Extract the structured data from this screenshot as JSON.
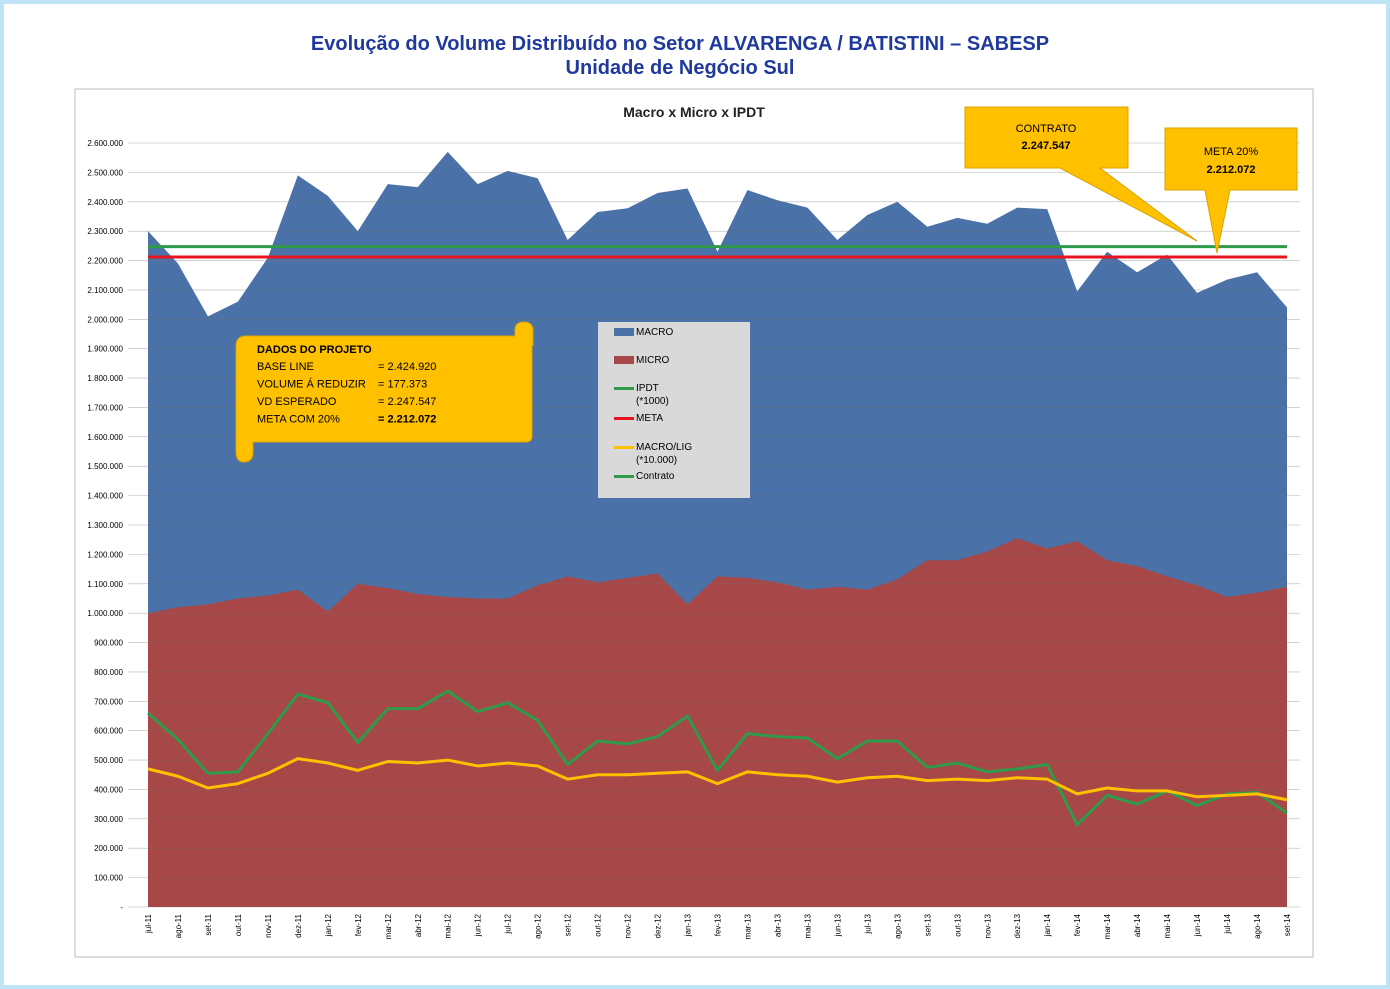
{
  "page_title": [
    "Evolução do Volume Distribuído no Setor ALVARENGA / BATISTINI – SABESP",
    "Unidade de Negócio Sul"
  ],
  "chart_data": {
    "type": "area",
    "title": "Macro x Micro x IPDT",
    "categories": [
      "jul-11",
      "ago-11",
      "set-11",
      "out-11",
      "nov-11",
      "dez-11",
      "jan-12",
      "fev-12",
      "mar-12",
      "abr-12",
      "mai-12",
      "jun-12",
      "jul-12",
      "ago-12",
      "set-12",
      "out-12",
      "nov-12",
      "dez-12",
      "jan-13",
      "fev-13",
      "mar-13",
      "abr-13",
      "mai-13",
      "jun-13",
      "jul-13",
      "ago-13",
      "set-13",
      "out-13",
      "nov-13",
      "dez-13",
      "jan-14",
      "fev-14",
      "mar-14",
      "abr-14",
      "mai-14",
      "jun-14",
      "jul-14",
      "ago-14",
      "set-14"
    ],
    "series": [
      {
        "name": "MACRO",
        "kind": "area",
        "color": "#4a72a8",
        "values": [
          2300000,
          2190000,
          2010000,
          2060000,
          2210000,
          2490000,
          2420000,
          2300000,
          2460000,
          2450000,
          2570000,
          2460000,
          2505000,
          2480000,
          2270000,
          2365000,
          2378000,
          2430000,
          2445000,
          2230000,
          2440000,
          2405000,
          2380000,
          2270000,
          2355000,
          2400000,
          2315000,
          2345000,
          2325000,
          2380000,
          2375000,
          2095000,
          2230000,
          2160000,
          2220000,
          2090000,
          2135000,
          2160000,
          2040000
        ]
      },
      {
        "name": "MICRO",
        "kind": "area",
        "color": "#a84747",
        "values": [
          1000000,
          1020000,
          1030000,
          1050000,
          1060000,
          1080000,
          1005000,
          1100000,
          1085000,
          1065000,
          1055000,
          1050000,
          1050000,
          1095000,
          1125000,
          1105000,
          1120000,
          1135000,
          1030000,
          1125000,
          1120000,
          1105000,
          1080000,
          1090000,
          1080000,
          1115000,
          1180000,
          1180000,
          1210000,
          1255000,
          1220000,
          1245000,
          1180000,
          1160000,
          1125000,
          1095000,
          1055000,
          1070000,
          1090000
        ]
      },
      {
        "name": "IPDT\n(*1000)",
        "kind": "line",
        "color": "#2e9a4a",
        "values": [
          660000,
          570000,
          455000,
          460000,
          590000,
          725000,
          695000,
          560000,
          675000,
          675000,
          735000,
          665000,
          695000,
          635000,
          485000,
          565000,
          555000,
          580000,
          650000,
          465000,
          590000,
          580000,
          575000,
          505000,
          565000,
          565000,
          475000,
          490000,
          460000,
          470000,
          485000,
          280000,
          380000,
          350000,
          395000,
          345000,
          385000,
          390000,
          320000
        ]
      },
      {
        "name": "META",
        "kind": "hline",
        "color": "#e8151f",
        "value": 2212072
      },
      {
        "name": "MACRO/LIG\n(*10.000)",
        "kind": "line",
        "color": "#ffc000",
        "values": [
          470000,
          445000,
          405000,
          420000,
          455000,
          505000,
          490000,
          465000,
          495000,
          490000,
          500000,
          480000,
          490000,
          480000,
          435000,
          450000,
          450000,
          455000,
          460000,
          420000,
          460000,
          450000,
          445000,
          425000,
          440000,
          445000,
          430000,
          435000,
          430000,
          440000,
          435000,
          385000,
          405000,
          395000,
          395000,
          375000,
          380000,
          385000,
          365000
        ]
      },
      {
        "name": "Contrato",
        "kind": "hline",
        "color": "#2e9a4a",
        "value": 2247547
      }
    ],
    "ylim": [
      0,
      2600000
    ],
    "yticks": [
      {
        "value": 0,
        "label": "-"
      },
      {
        "value": 100000,
        "label": "100.000"
      },
      {
        "value": 200000,
        "label": "200.000"
      },
      {
        "value": 300000,
        "label": "300.000"
      },
      {
        "value": 400000,
        "label": "400.000"
      },
      {
        "value": 500000,
        "label": "500.000"
      },
      {
        "value": 600000,
        "label": "600.000"
      },
      {
        "value": 700000,
        "label": "700.000"
      },
      {
        "value": 800000,
        "label": "800.000"
      },
      {
        "value": 900000,
        "label": "900.000"
      },
      {
        "value": 1000000,
        "label": "1.000.000"
      },
      {
        "value": 1100000,
        "label": "1.100.000"
      },
      {
        "value": 1200000,
        "label": "1.200.000"
      },
      {
        "value": 1300000,
        "label": "1.300.000"
      },
      {
        "value": 1400000,
        "label": "1.400.000"
      },
      {
        "value": 1500000,
        "label": "1.500.000"
      },
      {
        "value": 1600000,
        "label": "1.600.000"
      },
      {
        "value": 1700000,
        "label": "1.700.000"
      },
      {
        "value": 1800000,
        "label": "1.800.000"
      },
      {
        "value": 1900000,
        "label": "1.900.000"
      },
      {
        "value": 2000000,
        "label": "2.000.000"
      },
      {
        "value": 2100000,
        "label": "2.100.000"
      },
      {
        "value": 2200000,
        "label": "2.200.000"
      },
      {
        "value": 2300000,
        "label": "2.300.000"
      },
      {
        "value": 2400000,
        "label": "2.400.000"
      },
      {
        "value": 2500000,
        "label": "2.500.000"
      },
      {
        "value": 2600000,
        "label": "2.600.000"
      }
    ],
    "grid": true,
    "annotations": [
      {
        "text": "CONTRATO",
        "value": "2.247.547"
      },
      {
        "text": "META 20%",
        "value": "2.212.072"
      }
    ],
    "project_box": {
      "title": "DADOS DO PROJETO",
      "rows": [
        {
          "label": "BASE LINE",
          "value": "= 2.424.920"
        },
        {
          "label": "VOLUME Á REDUZIR",
          "value": "= 177.373"
        },
        {
          "label": "VD ESPERADO",
          "value": "= 2.247.547"
        },
        {
          "label": "META COM 20%",
          "value": "= 2.212.072"
        }
      ]
    }
  }
}
